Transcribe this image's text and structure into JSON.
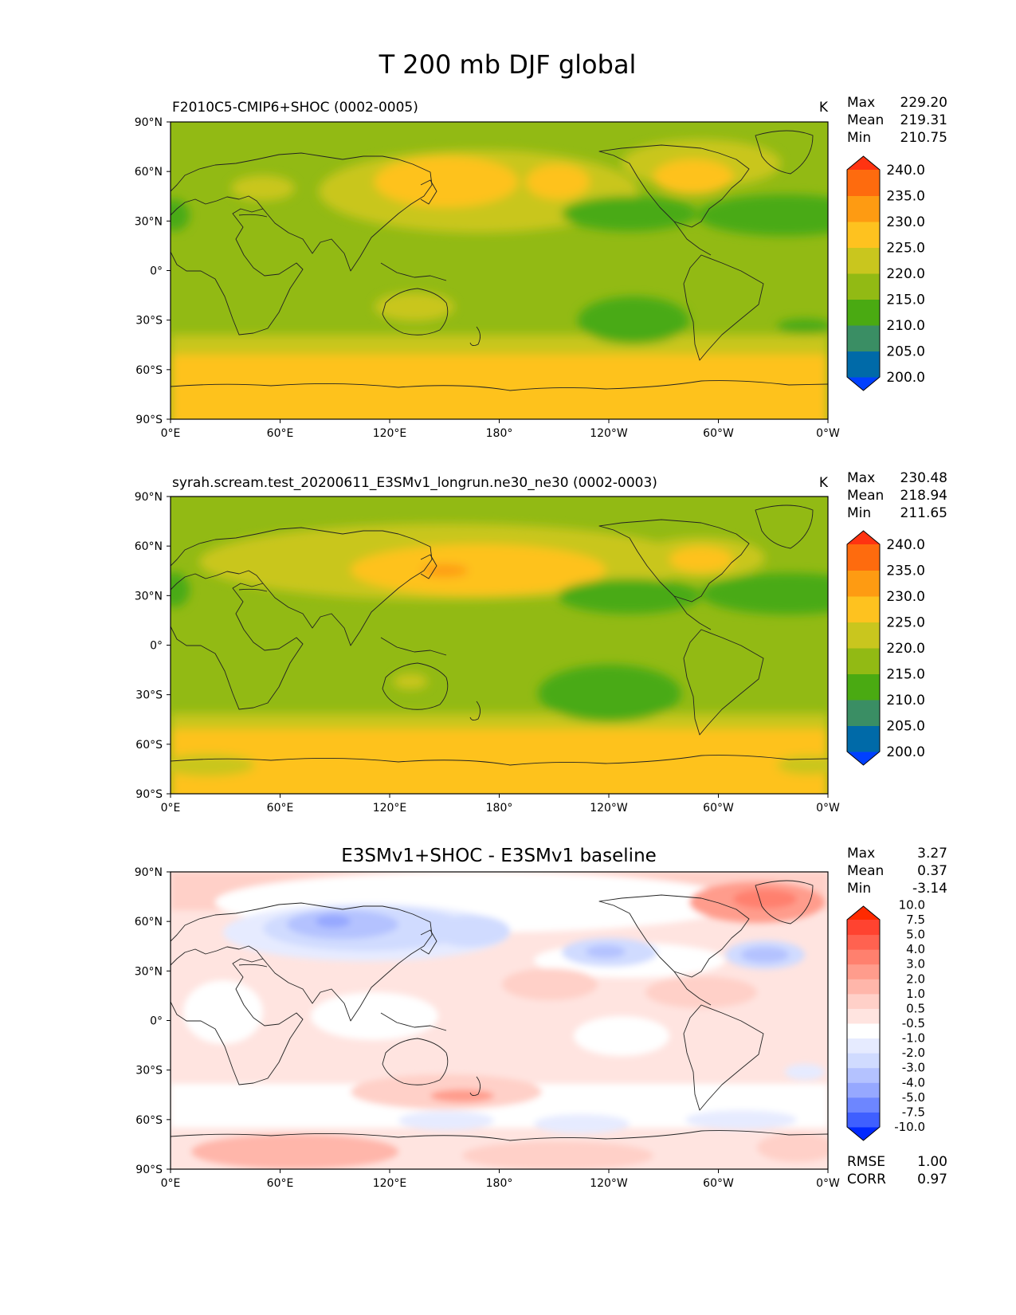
{
  "figure_title": "T 200 mb DJF global",
  "x_ticks": [
    "0°E",
    "60°E",
    "120°E",
    "180°",
    "120°W",
    "60°W",
    "0°W"
  ],
  "y_ticks": [
    "90°N",
    "60°N",
    "30°N",
    "0°",
    "30°S",
    "60°S",
    "90°S"
  ],
  "colors": {
    "abs_bands": [
      "#0040ff",
      "#006aa8",
      "#3a8e64",
      "#4aaa12",
      "#92ba14",
      "#c9c61e",
      "#fec21f",
      "#fe9b12",
      "#fe6b0e",
      "#ff3311"
    ],
    "diff_bands": [
      "#0028ff",
      "#3f5fff",
      "#6d86ff",
      "#96a8ff",
      "#b4c2ff",
      "#d0dbff",
      "#e6ebff",
      "#ffffff",
      "#ffe4e0",
      "#ffd0c8",
      "#ffb6aa",
      "#ff9c8c",
      "#ff806e",
      "#ff6250",
      "#ff4330",
      "#ff2a00"
    ],
    "coastline": "#222222"
  },
  "chart_data": [
    {
      "type": "heatmap",
      "title": "F2010C5-CMIP6+SHOC (0002-0005)",
      "units": "K",
      "stats": [
        {
          "label": "Max",
          "value": "229.20"
        },
        {
          "label": "Mean",
          "value": "219.31"
        },
        {
          "label": "Min",
          "value": "210.75"
        }
      ],
      "colorbar_levels": [
        "200.0",
        "205.0",
        "210.0",
        "215.0",
        "220.0",
        "225.0",
        "230.0",
        "235.0",
        "240.0"
      ],
      "xlim": [
        0,
        360
      ],
      "ylim": [
        -90,
        90
      ],
      "contour_regions": [
        {
          "level": "225.0",
          "lon": [
            140,
            200
          ],
          "lat": [
            35,
            60
          ]
        },
        {
          "level": "225.0",
          "lon": [
            250,
            290
          ],
          "lat": [
            45,
            68
          ]
        },
        {
          "level": "225.0",
          "lon": [
            0,
            360
          ],
          "lat": [
            -90,
            -58
          ]
        },
        {
          "level": "210.0",
          "lon": [
            220,
            255
          ],
          "lat": [
            -40,
            -15
          ]
        },
        {
          "level": "210.0",
          "lon": [
            280,
            360
          ],
          "lat": [
            18,
            40
          ]
        }
      ]
    },
    {
      "type": "heatmap",
      "title": "syrah.scream.test_20200611_E3SMv1_longrun.ne30_ne30 (0002-0003)",
      "units": "K",
      "stats": [
        {
          "label": "Max",
          "value": "230.48"
        },
        {
          "label": "Mean",
          "value": "218.94"
        },
        {
          "label": "Min",
          "value": "211.65"
        }
      ],
      "colorbar_levels": [
        "200.0",
        "205.0",
        "210.0",
        "215.0",
        "220.0",
        "225.0",
        "230.0",
        "235.0",
        "240.0"
      ],
      "xlim": [
        0,
        360
      ],
      "ylim": [
        -90,
        90
      ],
      "contour_regions": [
        {
          "level": "230.0",
          "lon": [
            138,
            158
          ],
          "lat": [
            38,
            48
          ]
        },
        {
          "level": "225.0",
          "lon": [
            110,
            190
          ],
          "lat": [
            30,
            55
          ]
        },
        {
          "level": "215.0",
          "lon": [
            200,
            250
          ],
          "lat": [
            -45,
            -10
          ]
        },
        {
          "level": "225.0",
          "lon": [
            0,
            360
          ],
          "lat": [
            -90,
            -55
          ]
        }
      ]
    },
    {
      "type": "heatmap",
      "title": "E3SMv1+SHOC - E3SMv1 baseline",
      "units": "",
      "stats": [
        {
          "label": "Max",
          "value": "3.27"
        },
        {
          "label": "Mean",
          "value": "0.37"
        },
        {
          "label": "Min",
          "value": "-3.14"
        }
      ],
      "colorbar_levels": [
        "-10.0",
        "-7.5",
        "-5.0",
        "-4.0",
        "-3.0",
        "-2.0",
        "-1.0",
        "-0.5",
        "0.5",
        "1.0",
        "2.0",
        "3.0",
        "4.0",
        "5.0",
        "7.5",
        "10.0"
      ],
      "metrics": [
        {
          "label": "RMSE",
          "value": "1.00"
        },
        {
          "label": "CORR",
          "value": "0.97"
        }
      ],
      "xlim": [
        0,
        360
      ],
      "ylim": [
        -90,
        90
      ]
    }
  ]
}
